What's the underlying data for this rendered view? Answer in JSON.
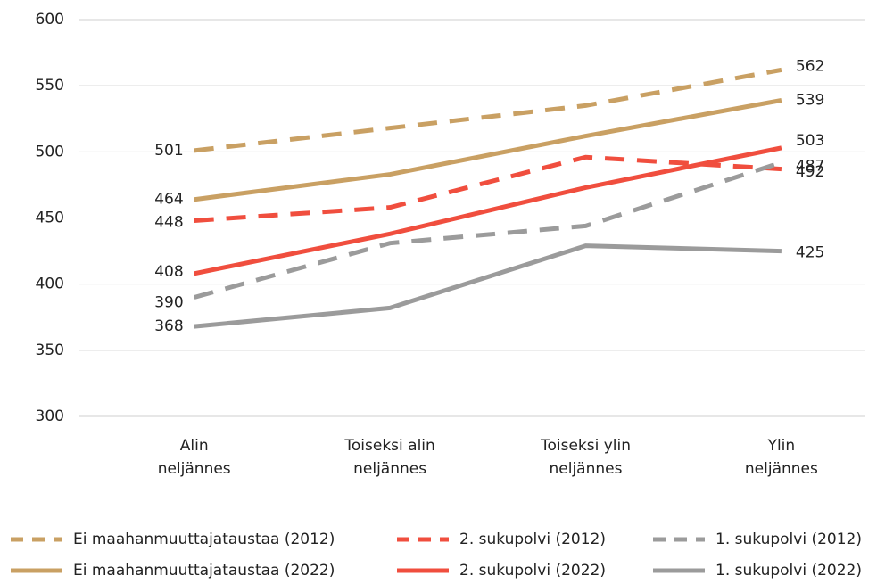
{
  "chart_data": {
    "type": "line",
    "categories": [
      "Alin neljännes",
      "Toiseksi alin neljännes",
      "Toiseksi ylin neljännes",
      "Ylin neljännes"
    ],
    "series": [
      {
        "name": "Ei maahanmuuttajataustaa (2012)",
        "color": "#c9a063",
        "dashed": true,
        "values": [
          501,
          518,
          535,
          562
        ]
      },
      {
        "name": "2. sukupolvi (2012)",
        "color": "#f04e3e",
        "dashed": true,
        "values": [
          448,
          458,
          496,
          487
        ]
      },
      {
        "name": "1. sukupolvi (2012)",
        "color": "#9b9b9b",
        "dashed": true,
        "values": [
          390,
          431,
          444,
          492
        ]
      },
      {
        "name": "Ei maahanmuuttajataustaa (2022)",
        "color": "#c9a063",
        "dashed": false,
        "values": [
          464,
          483,
          512,
          539
        ]
      },
      {
        "name": "2. sukupolvi (2022)",
        "color": "#f04e3e",
        "dashed": false,
        "values": [
          408,
          438,
          473,
          503
        ]
      },
      {
        "name": "1. sukupolvi (2022)",
        "color": "#9b9b9b",
        "dashed": false,
        "values": [
          368,
          382,
          429,
          425
        ]
      }
    ],
    "ylim": [
      300,
      600
    ],
    "yticks": [
      300,
      350,
      400,
      450,
      500,
      550,
      600
    ],
    "grid": true
  }
}
